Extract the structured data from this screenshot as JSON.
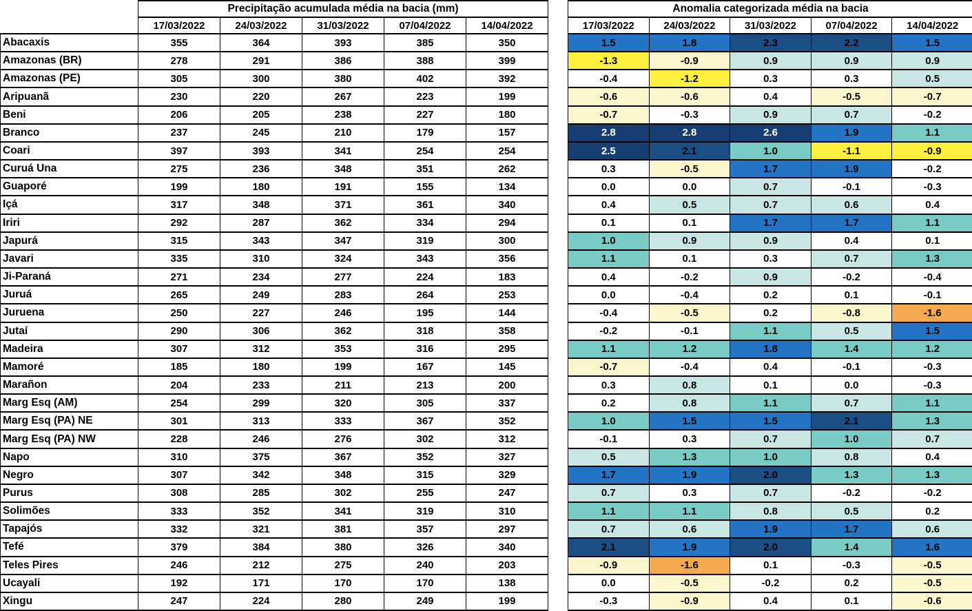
{
  "header": {
    "dates": [
      "17/03/2022",
      "24/03/2022",
      "31/03/2022",
      "07/04/2022",
      "14/04/2022"
    ]
  },
  "palette": {
    "D": {
      "bg": "#163E72",
      "text": "#FFFFFF",
      "meaning": "strong positive anomaly (>= 2.5)"
    },
    "d": {
      "bg": "#1C4E86",
      "text": "#000000",
      "meaning": "positive anomaly 2.0 - 2.4"
    },
    "b": {
      "bg": "#2374C4",
      "text": "#000000",
      "meaning": "positive anomaly 1.5 - 1.9"
    },
    "t": {
      "bg": "#79CCC5",
      "text": "#000000",
      "meaning": "positive anomaly 1.0 - 1.4"
    },
    "c": {
      "bg": "#C8E6E4",
      "text": "#000000",
      "meaning": "positive anomaly 0.5 - 0.9"
    },
    "w": {
      "bg": "#FFFFFF",
      "text": "#000000",
      "meaning": "near-neutral anomaly"
    },
    "p": {
      "bg": "#FBF6CB",
      "text": "#000000",
      "meaning": "weak negative anomaly"
    },
    "y": {
      "bg": "#FFF040",
      "text": "#000000",
      "meaning": "negative anomaly around -0.9 to -1.3"
    },
    "o": {
      "bg": "#F4A94C",
      "text": "#000000",
      "meaning": "strong negative anomaly (<= -1.6)"
    }
  },
  "chart_data": [
    {
      "type": "table",
      "title": "Precipitação acumulada média na bacia (mm)",
      "columns": [
        "17/03/2022",
        "24/03/2022",
        "31/03/2022",
        "07/04/2022",
        "14/04/2022"
      ],
      "rows": [
        {
          "basin": "Abacaxis",
          "values": [
            355,
            364,
            393,
            385,
            350
          ]
        },
        {
          "basin": "Amazonas (BR)",
          "values": [
            278,
            291,
            386,
            388,
            399
          ]
        },
        {
          "basin": "Amazonas (PE)",
          "values": [
            305,
            300,
            380,
            402,
            392
          ]
        },
        {
          "basin": "Aripuanã",
          "values": [
            230,
            220,
            267,
            223,
            199
          ]
        },
        {
          "basin": "Beni",
          "values": [
            206,
            205,
            238,
            227,
            180
          ]
        },
        {
          "basin": "Branco",
          "values": [
            237,
            245,
            210,
            179,
            157
          ]
        },
        {
          "basin": "Coari",
          "values": [
            397,
            393,
            341,
            254,
            254
          ]
        },
        {
          "basin": "Curuá Una",
          "values": [
            275,
            236,
            348,
            351,
            262
          ]
        },
        {
          "basin": "Guaporé",
          "values": [
            199,
            180,
            191,
            155,
            134
          ]
        },
        {
          "basin": "Içá",
          "values": [
            317,
            348,
            371,
            361,
            340
          ]
        },
        {
          "basin": "Iriri",
          "values": [
            292,
            287,
            362,
            334,
            294
          ]
        },
        {
          "basin": "Japurá",
          "values": [
            315,
            343,
            347,
            319,
            300
          ]
        },
        {
          "basin": "Javari",
          "values": [
            335,
            310,
            324,
            343,
            356
          ]
        },
        {
          "basin": "Ji-Paraná",
          "values": [
            271,
            234,
            277,
            224,
            183
          ]
        },
        {
          "basin": "Juruá",
          "values": [
            265,
            249,
            283,
            264,
            253
          ]
        },
        {
          "basin": "Juruena",
          "values": [
            250,
            227,
            246,
            195,
            144
          ]
        },
        {
          "basin": "Jutaí",
          "values": [
            290,
            306,
            362,
            318,
            358
          ]
        },
        {
          "basin": "Madeira",
          "values": [
            307,
            312,
            353,
            316,
            295
          ]
        },
        {
          "basin": "Mamoré",
          "values": [
            185,
            180,
            199,
            167,
            145
          ]
        },
        {
          "basin": "Marañon",
          "values": [
            204,
            233,
            211,
            213,
            200
          ]
        },
        {
          "basin": "Marg Esq (AM)",
          "values": [
            254,
            299,
            320,
            305,
            337
          ]
        },
        {
          "basin": "Marg Esq (PA) NE",
          "values": [
            301,
            313,
            333,
            367,
            352
          ]
        },
        {
          "basin": "Marg Esq (PA) NW",
          "values": [
            228,
            246,
            276,
            302,
            312
          ]
        },
        {
          "basin": "Napo",
          "values": [
            310,
            375,
            367,
            352,
            327
          ]
        },
        {
          "basin": "Negro",
          "values": [
            307,
            342,
            348,
            315,
            329
          ]
        },
        {
          "basin": "Purus",
          "values": [
            308,
            285,
            302,
            255,
            247
          ]
        },
        {
          "basin": "Solimões",
          "values": [
            333,
            352,
            341,
            319,
            310
          ]
        },
        {
          "basin": "Tapajós",
          "values": [
            332,
            321,
            381,
            357,
            297
          ]
        },
        {
          "basin": "Tefé",
          "values": [
            379,
            384,
            380,
            326,
            340
          ]
        },
        {
          "basin": "Teles Pires",
          "values": [
            246,
            212,
            275,
            240,
            203
          ]
        },
        {
          "basin": "Ucayali",
          "values": [
            192,
            171,
            170,
            170,
            138
          ]
        },
        {
          "basin": "Xingu",
          "values": [
            247,
            224,
            280,
            249,
            199
          ]
        }
      ]
    },
    {
      "type": "heatmap",
      "title": "Anomalia categorizada média na bacia",
      "columns": [
        "17/03/2022",
        "24/03/2022",
        "31/03/2022",
        "07/04/2022",
        "14/04/2022"
      ],
      "rows": [
        {
          "basin": "Abacaxis",
          "values": [
            "1.5",
            "1.8",
            "2.3",
            "2.2",
            "1.5"
          ],
          "cats": [
            "b",
            "b",
            "d",
            "d",
            "b"
          ]
        },
        {
          "basin": "Amazonas (BR)",
          "values": [
            "-1.3",
            "-0.9",
            "0.9",
            "0.9",
            "0.9"
          ],
          "cats": [
            "y",
            "p",
            "c",
            "c",
            "c"
          ]
        },
        {
          "basin": "Amazonas (PE)",
          "values": [
            "-0.4",
            "-1.2",
            "0.3",
            "0.3",
            "0.5"
          ],
          "cats": [
            "w",
            "y",
            "w",
            "w",
            "c"
          ]
        },
        {
          "basin": "Aripuanã",
          "values": [
            "-0.6",
            "-0.6",
            "0.4",
            "-0.5",
            "-0.7"
          ],
          "cats": [
            "p",
            "p",
            "w",
            "p",
            "p"
          ]
        },
        {
          "basin": "Beni",
          "values": [
            "-0.7",
            "-0.3",
            "0.9",
            "0.7",
            "-0.2"
          ],
          "cats": [
            "p",
            "w",
            "c",
            "c",
            "w"
          ]
        },
        {
          "basin": "Branco",
          "values": [
            "2.8",
            "2.8",
            "2.6",
            "1.9",
            "1.1"
          ],
          "cats": [
            "D",
            "D",
            "D",
            "b",
            "t"
          ]
        },
        {
          "basin": "Coari",
          "values": [
            "2.5",
            "2.1",
            "1.0",
            "-1.1",
            "-0.9"
          ],
          "cats": [
            "D",
            "d",
            "t",
            "y",
            "y"
          ]
        },
        {
          "basin": "Curuá Una",
          "values": [
            "0.3",
            "-0.5",
            "1.7",
            "1.9",
            "-0.2"
          ],
          "cats": [
            "w",
            "p",
            "b",
            "b",
            "w"
          ]
        },
        {
          "basin": "Guaporé",
          "values": [
            "0.0",
            "0.0",
            "0.7",
            "-0.1",
            "-0.3"
          ],
          "cats": [
            "w",
            "w",
            "c",
            "w",
            "w"
          ]
        },
        {
          "basin": "Içá",
          "values": [
            "0.4",
            "0.5",
            "0.7",
            "0.6",
            "0.4"
          ],
          "cats": [
            "w",
            "c",
            "c",
            "c",
            "w"
          ]
        },
        {
          "basin": "Iriri",
          "values": [
            "0.1",
            "0.1",
            "1.7",
            "1.7",
            "1.1"
          ],
          "cats": [
            "w",
            "w",
            "b",
            "b",
            "t"
          ]
        },
        {
          "basin": "Japurá",
          "values": [
            "1.0",
            "0.9",
            "0.9",
            "0.4",
            "0.1"
          ],
          "cats": [
            "t",
            "c",
            "c",
            "w",
            "w"
          ]
        },
        {
          "basin": "Javari",
          "values": [
            "1.1",
            "0.1",
            "0.3",
            "0.7",
            "1.3"
          ],
          "cats": [
            "t",
            "w",
            "w",
            "c",
            "t"
          ]
        },
        {
          "basin": "Ji-Paraná",
          "values": [
            "0.4",
            "-0.2",
            "0.9",
            "-0.2",
            "-0.4"
          ],
          "cats": [
            "w",
            "w",
            "c",
            "w",
            "w"
          ]
        },
        {
          "basin": "Juruá",
          "values": [
            "0.0",
            "-0.4",
            "0.2",
            "0.1",
            "-0.1"
          ],
          "cats": [
            "w",
            "w",
            "w",
            "w",
            "w"
          ]
        },
        {
          "basin": "Juruena",
          "values": [
            "-0.4",
            "-0.5",
            "0.2",
            "-0.8",
            "-1.6"
          ],
          "cats": [
            "w",
            "p",
            "w",
            "p",
            "o"
          ]
        },
        {
          "basin": "Jutaí",
          "values": [
            "-0.2",
            "-0.1",
            "1.1",
            "0.5",
            "1.5"
          ],
          "cats": [
            "w",
            "w",
            "t",
            "c",
            "b"
          ]
        },
        {
          "basin": "Madeira",
          "values": [
            "1.1",
            "1.2",
            "1.8",
            "1.4",
            "1.2"
          ],
          "cats": [
            "t",
            "t",
            "b",
            "t",
            "t"
          ]
        },
        {
          "basin": "Mamoré",
          "values": [
            "-0.7",
            "-0.4",
            "0.4",
            "-0.1",
            "-0.3"
          ],
          "cats": [
            "p",
            "w",
            "w",
            "w",
            "w"
          ]
        },
        {
          "basin": "Marañon",
          "values": [
            "0.3",
            "0.8",
            "0.1",
            "0.0",
            "-0.3"
          ],
          "cats": [
            "w",
            "c",
            "w",
            "w",
            "w"
          ]
        },
        {
          "basin": "Marg Esq (AM)",
          "values": [
            "0.2",
            "0.8",
            "1.1",
            "0.7",
            "1.1"
          ],
          "cats": [
            "w",
            "c",
            "t",
            "c",
            "t"
          ]
        },
        {
          "basin": "Marg Esq (PA) NE",
          "values": [
            "1.0",
            "1.5",
            "1.5",
            "2.1",
            "1.3"
          ],
          "cats": [
            "t",
            "b",
            "b",
            "d",
            "t"
          ]
        },
        {
          "basin": "Marg Esq (PA) NW",
          "values": [
            "-0.1",
            "0.3",
            "0.7",
            "1.0",
            "0.7"
          ],
          "cats": [
            "w",
            "w",
            "c",
            "t",
            "c"
          ]
        },
        {
          "basin": "Napo",
          "values": [
            "0.5",
            "1.3",
            "1.0",
            "0.8",
            "0.4"
          ],
          "cats": [
            "c",
            "t",
            "t",
            "c",
            "w"
          ]
        },
        {
          "basin": "Negro",
          "values": [
            "1.7",
            "1.9",
            "2.0",
            "1.3",
            "1.3"
          ],
          "cats": [
            "b",
            "b",
            "d",
            "t",
            "t"
          ]
        },
        {
          "basin": "Purus",
          "values": [
            "0.7",
            "0.3",
            "0.7",
            "-0.2",
            "-0.2"
          ],
          "cats": [
            "c",
            "w",
            "c",
            "w",
            "w"
          ]
        },
        {
          "basin": "Solimões",
          "values": [
            "1.1",
            "1.1",
            "0.8",
            "0.5",
            "0.2"
          ],
          "cats": [
            "t",
            "t",
            "c",
            "c",
            "w"
          ]
        },
        {
          "basin": "Tapajós",
          "values": [
            "0.7",
            "0.6",
            "1.9",
            "1.7",
            "0.6"
          ],
          "cats": [
            "c",
            "c",
            "b",
            "b",
            "c"
          ]
        },
        {
          "basin": "Tefé",
          "values": [
            "2.1",
            "1.9",
            "2.0",
            "1.4",
            "1.6"
          ],
          "cats": [
            "d",
            "b",
            "d",
            "t",
            "b"
          ]
        },
        {
          "basin": "Teles Pires",
          "values": [
            "-0.9",
            "-1.6",
            "0.1",
            "-0.3",
            "-0.5"
          ],
          "cats": [
            "p",
            "o",
            "w",
            "w",
            "p"
          ]
        },
        {
          "basin": "Ucayali",
          "values": [
            "0.0",
            "-0.5",
            "-0.2",
            "0.2",
            "-0.5"
          ],
          "cats": [
            "w",
            "p",
            "w",
            "w",
            "p"
          ]
        },
        {
          "basin": "Xingu",
          "values": [
            "-0.3",
            "-0.9",
            "0.4",
            "0.1",
            "-0.6"
          ],
          "cats": [
            "w",
            "p",
            "w",
            "w",
            "p"
          ]
        }
      ]
    }
  ]
}
